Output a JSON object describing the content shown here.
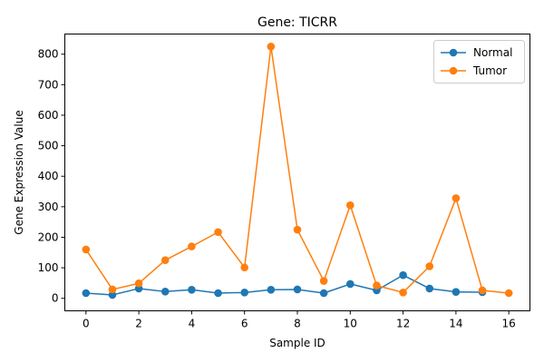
{
  "chart_data": {
    "type": "line",
    "title": "Gene: TICRR",
    "xlabel": "Sample ID",
    "ylabel": "Gene Expression Value",
    "xlim": [
      -0.8,
      16.8
    ],
    "ylim": [
      -41,
      866
    ],
    "xticks": [
      0,
      2,
      4,
      6,
      8,
      10,
      12,
      14,
      16
    ],
    "yticks": [
      0,
      100,
      200,
      300,
      400,
      500,
      600,
      700,
      800
    ],
    "grid": false,
    "legend_position": "top-right",
    "series": [
      {
        "name": "Normal",
        "color": "#1f77b4",
        "x": [
          0,
          1,
          2,
          3,
          4,
          5,
          6,
          7,
          8,
          9,
          10,
          11,
          12,
          13,
          14,
          15
        ],
        "y": [
          17,
          11,
          32,
          22,
          28,
          17,
          19,
          28,
          29,
          17,
          47,
          26,
          76,
          32,
          21,
          20
        ]
      },
      {
        "name": "Tumor",
        "color": "#ff7f0e",
        "x": [
          0,
          1,
          2,
          3,
          4,
          5,
          6,
          7,
          8,
          9,
          10,
          11,
          12,
          13,
          14,
          15,
          16
        ],
        "y": [
          160,
          29,
          49,
          125,
          170,
          217,
          101,
          825,
          225,
          57,
          305,
          42,
          19,
          105,
          328,
          26,
          17
        ]
      }
    ]
  }
}
